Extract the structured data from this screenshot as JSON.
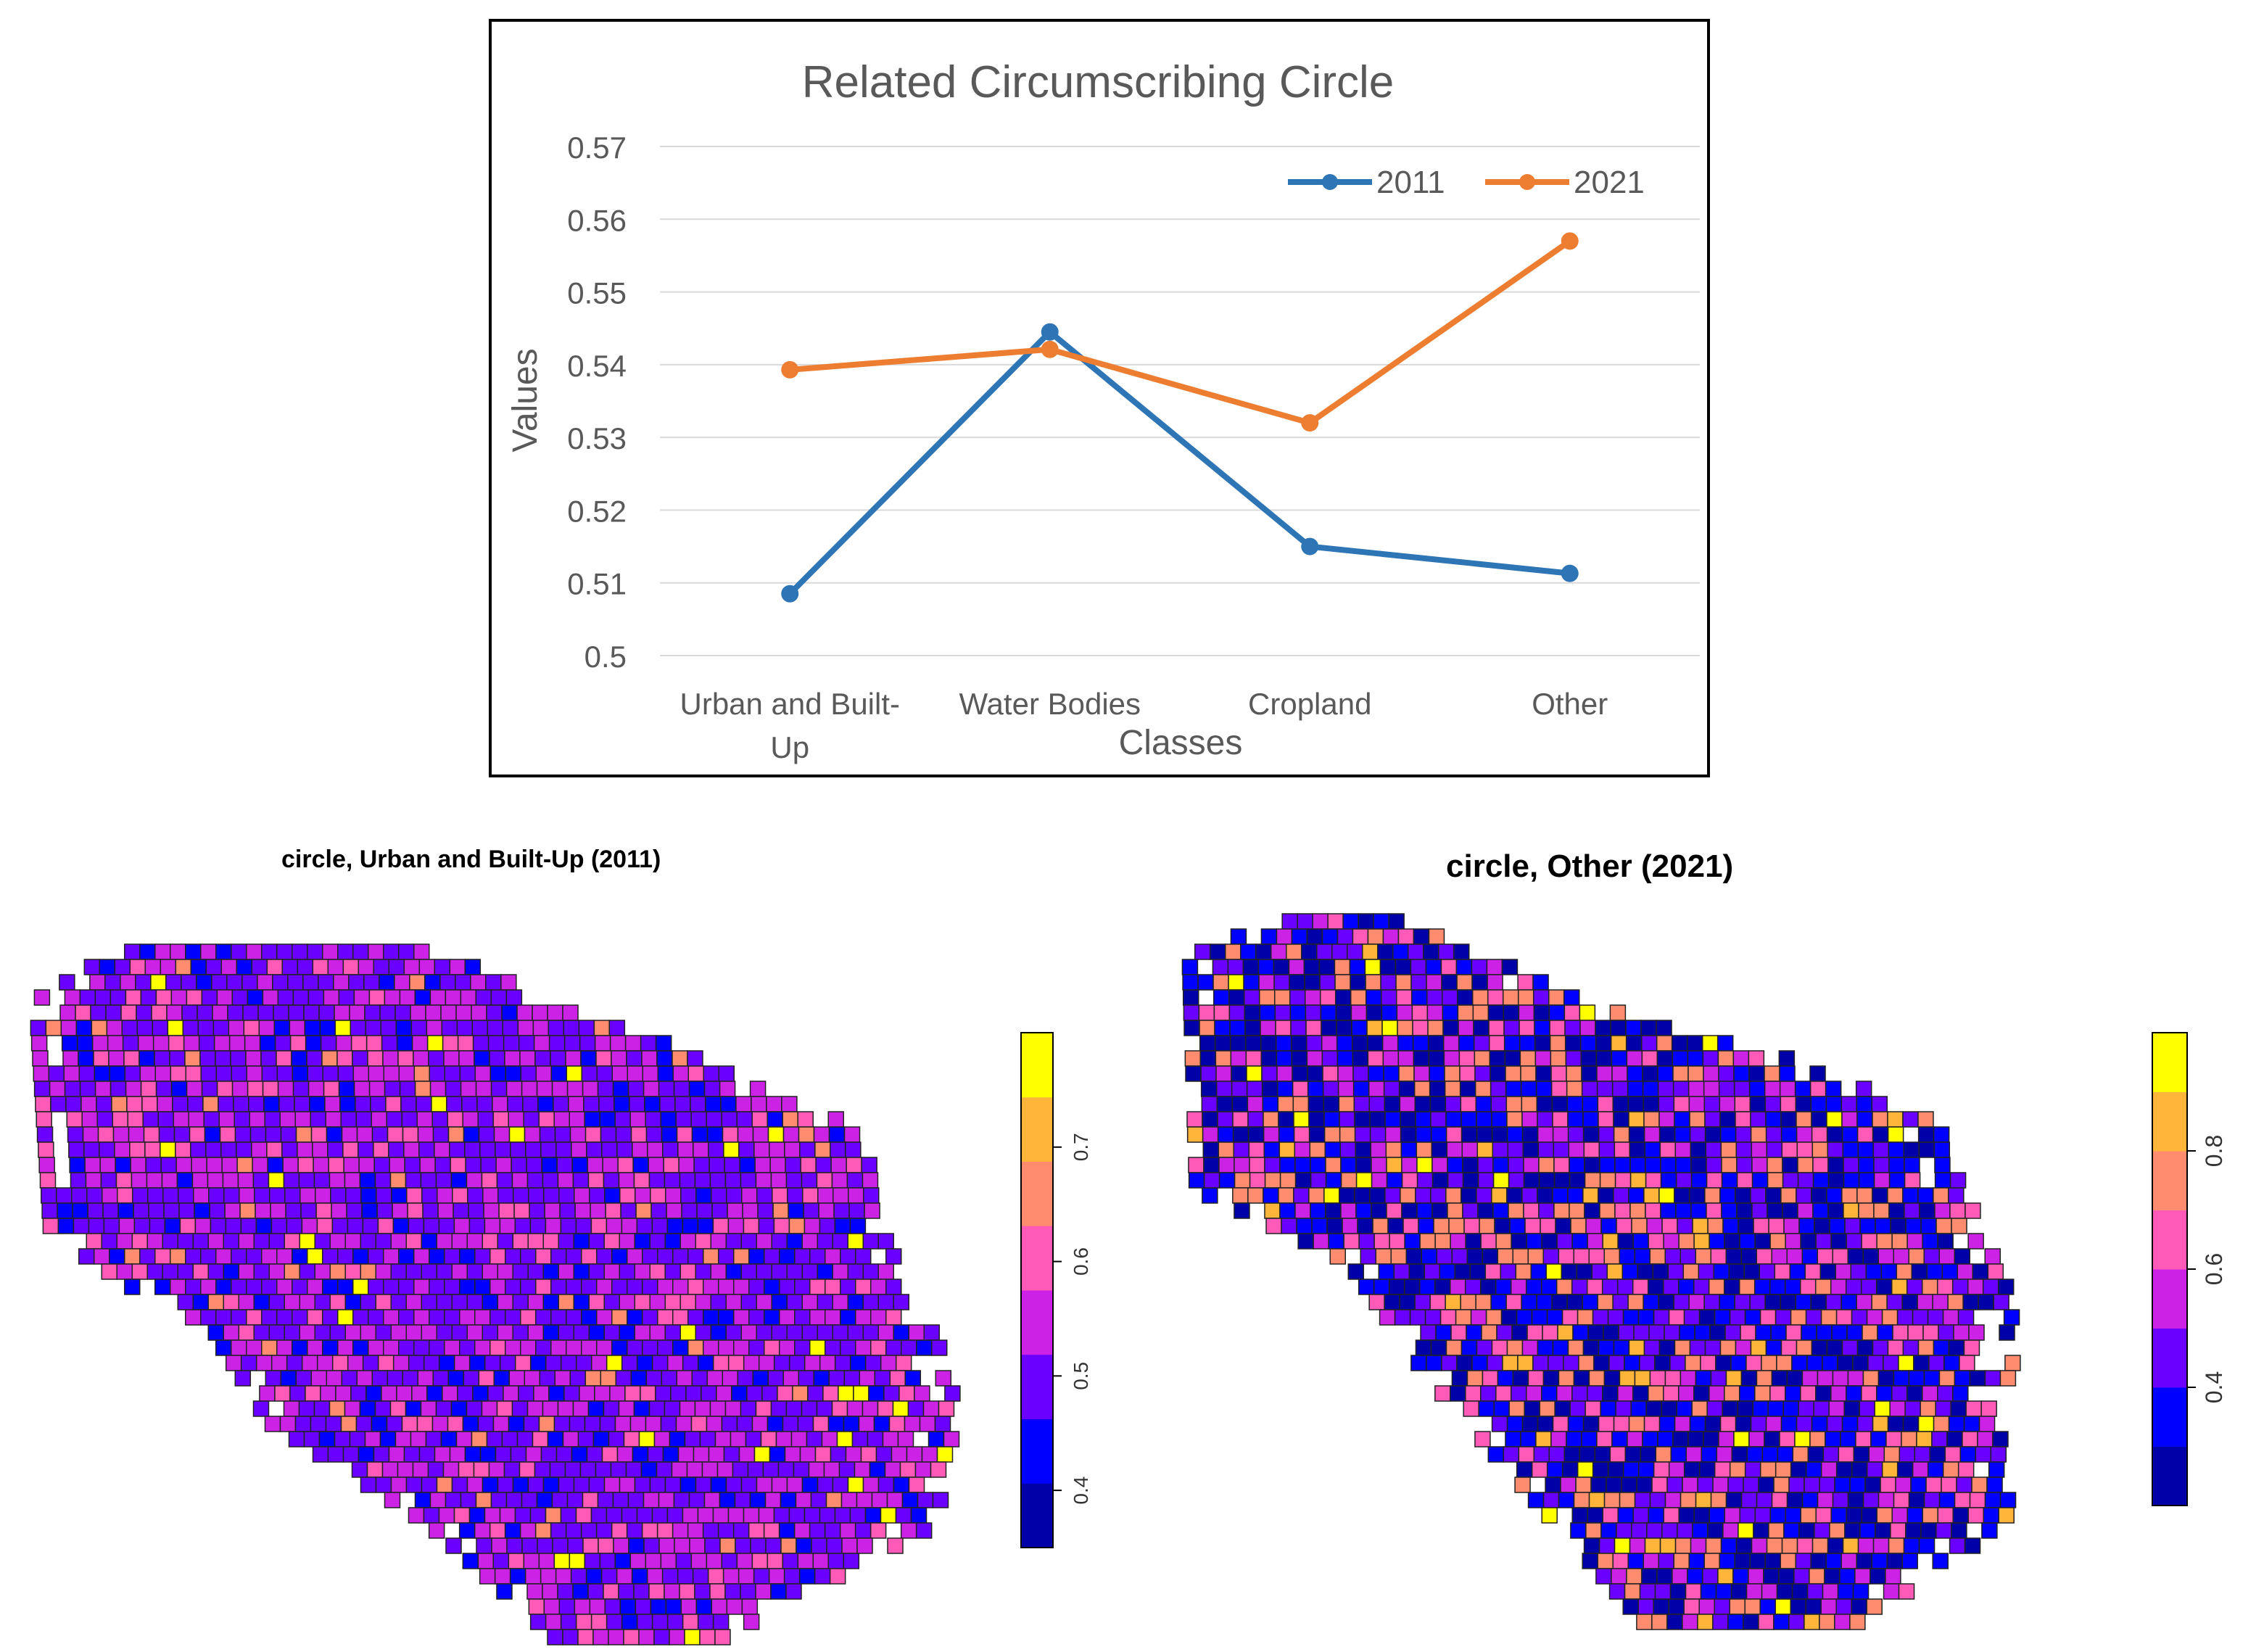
{
  "chart_data": [
    {
      "type": "line",
      "title": "Related Circumscribing Circle",
      "xlabel": "Classes",
      "ylabel": "Values",
      "categories": [
        "Urban and Built-Up",
        "Water Bodies",
        "Cropland",
        "Other"
      ],
      "category_lines": [
        [
          "Urban and Built-",
          "Up"
        ],
        [
          "Water Bodies"
        ],
        [
          "Cropland"
        ],
        [
          "Other"
        ]
      ],
      "ylim": [
        0.5,
        0.57
      ],
      "yticks": [
        0.5,
        0.51,
        0.52,
        0.53,
        0.54,
        0.55,
        0.56,
        0.57
      ],
      "ytick_labels": [
        "0.5",
        "0.51",
        "0.52",
        "0.53",
        "0.54",
        "0.55",
        "0.56",
        "0.57"
      ],
      "grid": true,
      "legend_position": "top-right",
      "series": [
        {
          "name": "2011",
          "color": "#2e75b6",
          "values": [
            0.5085,
            0.5445,
            0.515,
            0.5113
          ]
        },
        {
          "name": "2021",
          "color": "#ed7d31",
          "values": [
            0.5393,
            0.5421,
            0.532,
            0.557
          ]
        }
      ]
    },
    {
      "type": "heatmap",
      "title": "circle, Urban and Built-Up (2011)",
      "colorbar": {
        "ticks": [
          0.4,
          0.5,
          0.6,
          0.7
        ],
        "tick_labels": [
          "0.4",
          "0.5",
          "0.6",
          "0.7"
        ],
        "range": [
          0.35,
          0.8
        ],
        "colors": [
          "#0000a8",
          "#0000ff",
          "#6a00ff",
          "#cc22e6",
          "#ff5ab8",
          "#ff8c6e",
          "#ffb43a",
          "#ffff00"
        ]
      }
    },
    {
      "type": "heatmap",
      "title": "circle, Other (2021)",
      "colorbar": {
        "ticks": [
          0.4,
          0.6,
          0.8
        ],
        "tick_labels": [
          "0.4",
          "0.6",
          "0.8"
        ],
        "range": [
          0.2,
          1.0
        ],
        "colors": [
          "#0000a8",
          "#0000ff",
          "#6a00ff",
          "#cc22e6",
          "#ff5ab8",
          "#ff8c6e",
          "#ffb43a",
          "#ffff00"
        ]
      }
    }
  ]
}
